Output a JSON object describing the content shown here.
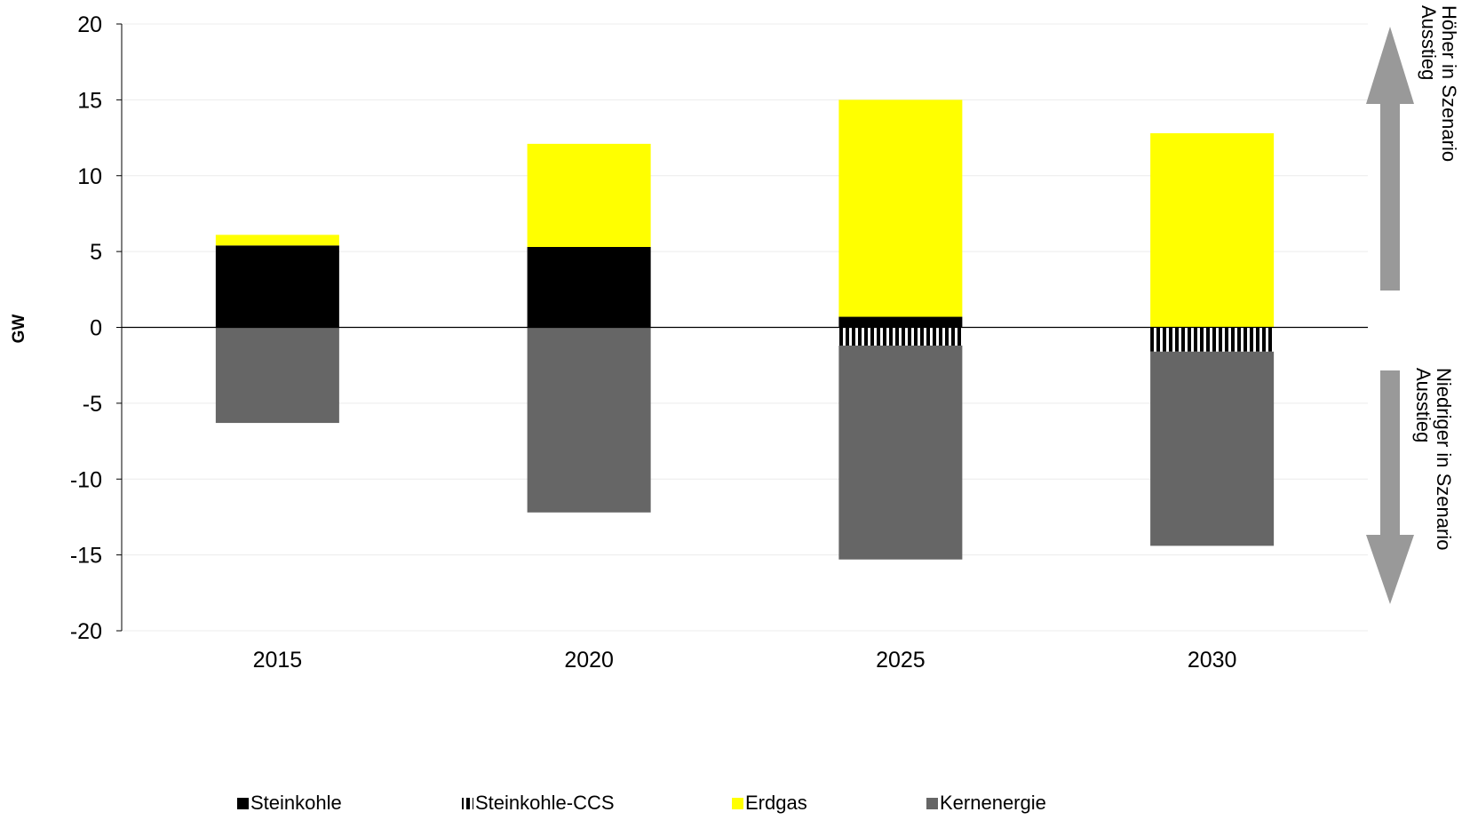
{
  "chart_data": {
    "type": "bar",
    "stacked": true,
    "categories": [
      "2015",
      "2020",
      "2025",
      "2030"
    ],
    "series": [
      {
        "name": "Steinkohle",
        "color": "#000000",
        "pattern": "solid",
        "values": [
          5.4,
          5.3,
          0.7,
          0.0
        ]
      },
      {
        "name": "Steinkohle-CCS",
        "color": "#000000",
        "pattern": "vertical-stripes",
        "values": [
          0.0,
          0.0,
          -1.2,
          -1.6
        ]
      },
      {
        "name": "Erdgas",
        "color": "#ffff00",
        "pattern": "solid",
        "values": [
          0.7,
          6.8,
          14.3,
          12.8
        ]
      },
      {
        "name": "Kernenergie",
        "color": "#666666",
        "pattern": "solid",
        "values": [
          -6.3,
          -12.2,
          -14.1,
          -12.8
        ]
      }
    ],
    "ylabel": "GW",
    "ylim": [
      -20,
      20
    ],
    "yticks": [
      20,
      15,
      10,
      5,
      0,
      -5,
      -10,
      -15,
      -20
    ],
    "grid": true,
    "legend": "bottom",
    "annotations": {
      "up": [
        "Höher in Szenario",
        "Ausstieg"
      ],
      "down": [
        "Niedriger in Szenario",
        "Ausstieg"
      ]
    },
    "arrow_color": "#999999"
  }
}
